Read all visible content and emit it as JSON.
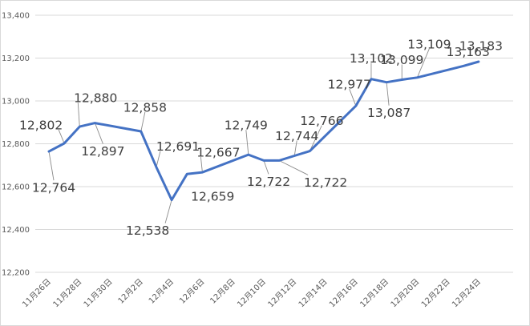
{
  "chart_data": {
    "type": "line",
    "title": "",
    "xlabel": "",
    "ylabel": "",
    "ylim": [
      12200,
      13400
    ],
    "yticks": [
      12200,
      12400,
      12600,
      12800,
      13000,
      13200,
      13400
    ],
    "ytick_labels": [
      "12,200",
      "12,400",
      "12,600",
      "12,800",
      "13,000",
      "13,200",
      "13,400"
    ],
    "xlim_days": [
      "11月26日",
      "12月25日"
    ],
    "xtick_labels": [
      "11月26日",
      "11月28日",
      "11月30日",
      "12月2日",
      "12月4日",
      "12月6日",
      "12月8日",
      "12月10日",
      "12月12日",
      "12月14日",
      "12月16日",
      "12月18日",
      "12月20日",
      "12月22日",
      "12月24日"
    ],
    "grid": true,
    "line_color": "#4472c4",
    "series": [
      {
        "points": [
          {
            "date": "11月26日",
            "value": 12764,
            "label": "12,764"
          },
          {
            "date": "11月27日",
            "value": 12802,
            "label": "12,802"
          },
          {
            "date": "11月28日",
            "value": 12880,
            "label": "12,880"
          },
          {
            "date": "11月29日",
            "value": 12897,
            "label": "12,897"
          },
          {
            "date": "12月2日",
            "value": 12858,
            "label": "12,858"
          },
          {
            "date": "12月3日",
            "value": 12691,
            "label": "12,691"
          },
          {
            "date": "12月4日",
            "value": 12538,
            "label": "12,538"
          },
          {
            "date": "12月5日",
            "value": 12659,
            "label": "12,659"
          },
          {
            "date": "12月6日",
            "value": 12667,
            "label": "12,667"
          },
          {
            "date": "12月9日",
            "value": 12749,
            "label": "12,749"
          },
          {
            "date": "12月10日",
            "value": 12722,
            "label": "12,722"
          },
          {
            "date": "12月11日",
            "value": 12722,
            "label": "12,722"
          },
          {
            "date": "12月12日",
            "value": 12744,
            "label": "12,744"
          },
          {
            "date": "12月13日",
            "value": 12766,
            "label": "12,766"
          },
          {
            "date": "12月16日",
            "value": 12977,
            "label": "12,977"
          },
          {
            "date": "12月17日",
            "value": 13102,
            "label": "13,102"
          },
          {
            "date": "12月18日",
            "value": 13087,
            "label": "13,087"
          },
          {
            "date": "12月19日",
            "value": 13099,
            "label": "13,099"
          },
          {
            "date": "12月20日",
            "value": 13109,
            "label": "13,109"
          },
          {
            "date": "12月23日",
            "value": 13163,
            "label": "13,163"
          },
          {
            "date": "12月24日",
            "value": 13183,
            "label": "13,183"
          }
        ]
      }
    ]
  }
}
